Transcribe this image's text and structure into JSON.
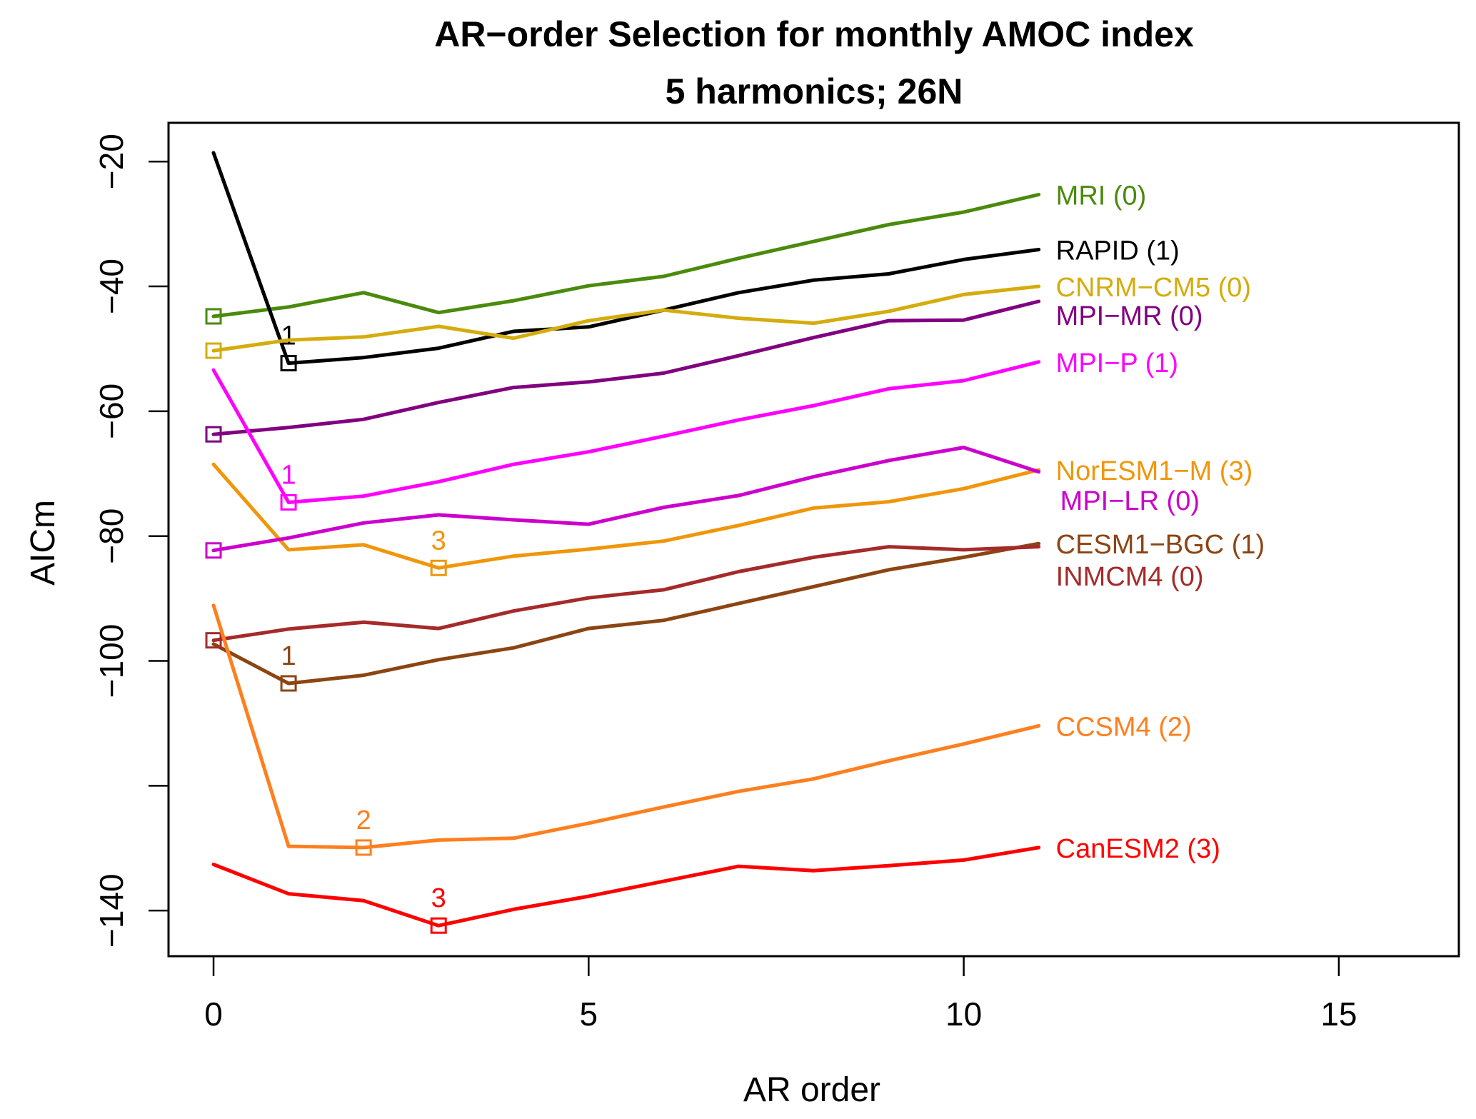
{
  "chart_data": {
    "type": "line",
    "title": "AR−order Selection for monthly AMOC index",
    "subtitle": "5 harmonics; 26N",
    "xlabel": "AR order",
    "ylabel": "AICm",
    "xlim": [
      -0.6,
      16.6
    ],
    "ylim": [
      -147.3,
      -13.8
    ],
    "xticks": [
      0,
      5,
      10,
      15
    ],
    "xtick_labels": [
      "0",
      "5",
      "10",
      "15"
    ],
    "yticks": [
      -20,
      -40,
      -60,
      -80,
      -100,
      -120,
      -140
    ],
    "ytick_labels": [
      "−20",
      "−40",
      "−60",
      "−80",
      "−100",
      "",
      "−140"
    ],
    "grid": false,
    "legend": "direct labels at right end of each line",
    "x": [
      0,
      1,
      2,
      3,
      4,
      5,
      6,
      7,
      8,
      9,
      10,
      11
    ],
    "series": [
      {
        "name": "MRI",
        "label": "MRI (0)",
        "best_order": 0,
        "color": "#4a8a0c",
        "values": [
          -44.8,
          -43.3,
          -41.0,
          -44.2,
          -42.3,
          -39.9,
          -38.4,
          -35.5,
          -32.8,
          -30.1,
          -28.1,
          -25.3
        ]
      },
      {
        "name": "RAPID",
        "label": "RAPID (1)",
        "best_order": 1,
        "color": "#000000",
        "values": [
          -18.6,
          -52.3,
          -51.4,
          -49.9,
          -47.2,
          -46.5,
          -43.8,
          -41.0,
          -39.0,
          -38.0,
          -35.7,
          -34.1
        ]
      },
      {
        "name": "CNRM-CM5",
        "label": "CNRM−CM5 (0)",
        "best_order": 0,
        "color": "#d4ac0d",
        "values": [
          -50.3,
          -48.6,
          -48.1,
          -46.4,
          -48.3,
          -45.5,
          -43.8,
          -45.1,
          -45.9,
          -44.0,
          -41.3,
          -40.0
        ]
      },
      {
        "name": "MPI-MR",
        "label": "MPI−MR (0)",
        "best_order": 0,
        "color": "#800080",
        "values": [
          -63.7,
          -62.6,
          -61.3,
          -58.6,
          -56.2,
          -55.3,
          -53.9,
          -51.1,
          -48.2,
          -45.5,
          -45.4,
          -42.4
        ]
      },
      {
        "name": "MPI-P",
        "label": "MPI−P (1)",
        "best_order": 1,
        "color": "#ff00ff",
        "values": [
          -53.4,
          -74.6,
          -73.6,
          -71.3,
          -68.5,
          -66.5,
          -64.0,
          -61.4,
          -59.1,
          -56.4,
          -55.1,
          -52.1
        ]
      },
      {
        "name": "NorESM1-M",
        "label": "NorESM1−M (3)",
        "best_order": 3,
        "color": "#f0960a",
        "values": [
          -68.5,
          -82.2,
          -81.4,
          -85.1,
          -83.2,
          -82.1,
          -80.8,
          -78.3,
          -75.5,
          -74.5,
          -72.4,
          -69.4
        ]
      },
      {
        "name": "MPI-LR",
        "label": "MPI−LR (0)",
        "best_order": 0,
        "color": "#cc00cc",
        "values": [
          -82.3,
          -80.3,
          -77.9,
          -76.6,
          -77.4,
          -78.1,
          -75.4,
          -73.5,
          -70.5,
          -67.9,
          -65.8,
          -69.7
        ]
      },
      {
        "name": "CESM1-BGC",
        "label": "CESM1−BGC (1)",
        "best_order": 1,
        "color": "#8b4513",
        "values": [
          -97.3,
          -103.6,
          -102.3,
          -99.8,
          -97.9,
          -94.8,
          -93.5,
          -90.8,
          -88.1,
          -85.4,
          -83.4,
          -81.2
        ]
      },
      {
        "name": "INMCM4",
        "label": "INMCM4 (0)",
        "best_order": 0,
        "color": "#a52a2a",
        "values": [
          -96.7,
          -94.9,
          -93.8,
          -94.8,
          -92.0,
          -89.9,
          -88.6,
          -85.7,
          -83.4,
          -81.7,
          -82.2,
          -81.7
        ]
      },
      {
        "name": "CCSM4",
        "label": "CCSM4 (2)",
        "best_order": 2,
        "color": "#ff7f1e",
        "values": [
          -91.1,
          -129.7,
          -129.9,
          -128.7,
          -128.4,
          -126.0,
          -123.4,
          -120.9,
          -118.9,
          -116.0,
          -113.3,
          -110.4
        ]
      },
      {
        "name": "CanESM2",
        "label": "CanESM2 (3)",
        "best_order": 3,
        "color": "#ff0000",
        "values": [
          -132.6,
          -137.3,
          -138.4,
          -142.4,
          -139.8,
          -137.7,
          -135.3,
          -132.9,
          -133.6,
          -132.8,
          -131.9,
          -129.9
        ]
      }
    ],
    "min_annotations": [
      {
        "series": "RAPID",
        "text": "1"
      },
      {
        "series": "MPI-P",
        "text": "1"
      },
      {
        "series": "NorESM1-M",
        "text": "3"
      },
      {
        "series": "CESM1-BGC",
        "text": "1"
      },
      {
        "series": "CCSM4",
        "text": "2"
      },
      {
        "series": "CanESM2",
        "text": "3"
      }
    ]
  }
}
